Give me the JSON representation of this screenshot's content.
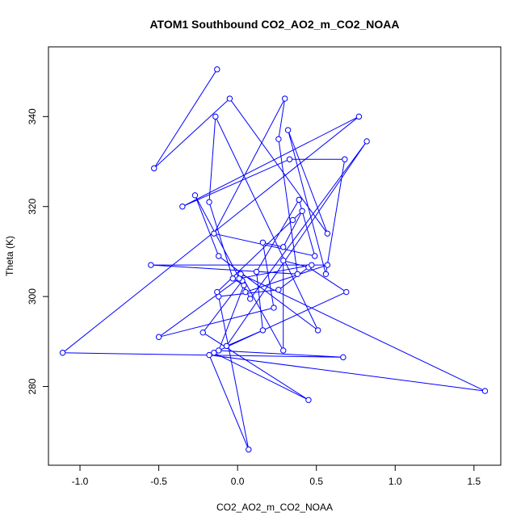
{
  "chart_data": {
    "type": "line",
    "title": "ATOM1 Southbound CO2_AO2_m_CO2_NOAA",
    "xlabel": "CO2_AO2_m_CO2_NOAA",
    "ylabel": "Theta (K)",
    "xlim": [
      -1.2,
      1.67
    ],
    "ylim": [
      262.5,
      355.5
    ],
    "xticks": [
      -1.0,
      -0.5,
      0.0,
      0.5,
      1.0,
      1.5
    ],
    "xtick_labels": [
      "-1.0",
      "-0.5",
      "0.0",
      "0.5",
      "1.0",
      "1.5"
    ],
    "yticks": [
      280,
      300,
      320,
      340
    ],
    "ytick_labels": [
      "280",
      "300",
      "320",
      "340"
    ],
    "grid": false,
    "legend": "none",
    "marker": "open-circle",
    "series": [
      {
        "color": "#0000ff",
        "x": [
          -0.13,
          -0.53,
          -0.05,
          0.57,
          0.32,
          0.56,
          0.68,
          0.33,
          -0.35,
          0.77,
          -1.11,
          0.67,
          -0.12,
          0.04,
          -0.03,
          -0.18,
          -0.14,
          0.51,
          -0.12,
          -0.27,
          0.08,
          0.82,
          -0.07,
          0.16,
          0.12,
          0.39,
          0.49,
          -0.15,
          0.3,
          0.26,
          0.38,
          -0.55,
          0.57,
          0.05,
          0.03,
          -0.22,
          0.45,
          -0.15,
          0.69,
          0.45,
          0.29,
          0.29,
          0.02,
          1.57,
          -0.18,
          0.07,
          -0.12,
          0.26,
          0.47,
          0.01,
          -0.5,
          0.23,
          0.16,
          0.29,
          0.41,
          0.35,
          -0.13
        ],
        "y": [
          350.5,
          328.5,
          344,
          314,
          337,
          305,
          330.5,
          330.5,
          320,
          340,
          287.5,
          286.5,
          288,
          302.5,
          304,
          321,
          340,
          292.5,
          309,
          322.5,
          299.5,
          334.5,
          289,
          292.5,
          305.5,
          321.5,
          309,
          314,
          344,
          335,
          305,
          307,
          307,
          301,
          303.5,
          292,
          277,
          287.5,
          301,
          306.5,
          308,
          288,
          305,
          279,
          287,
          266,
          300,
          301.5,
          307,
          304,
          291,
          297.5,
          312,
          311,
          319,
          317,
          301
        ]
      }
    ]
  }
}
